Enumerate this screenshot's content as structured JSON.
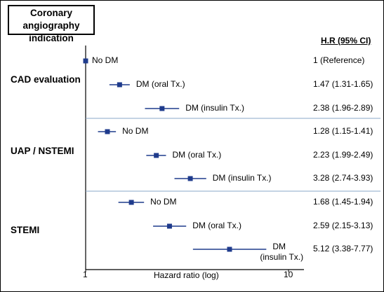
{
  "chart_title": "Coronary angiography indication",
  "ci_header": "H.R (95% CI)",
  "chart_data": {
    "type": "forest",
    "xlabel": "Hazard ratio (log)",
    "xscale": "log",
    "xlim": [
      1,
      10
    ],
    "x_ticks": [
      "1",
      "10"
    ],
    "marker_color": "#1f3b8c",
    "separator_color": "#8aa7c8",
    "groups": [
      {
        "name": "CAD evaluation",
        "rows": [
          {
            "label": "No DM",
            "hr": 1.0,
            "lo": null,
            "hi": null,
            "ci_text": "1      (Reference)"
          },
          {
            "label": "DM (oral Tx.)",
            "hr": 1.47,
            "lo": 1.31,
            "hi": 1.65,
            "ci_text": "1.47 (1.31-1.65)"
          },
          {
            "label": "DM (insulin Tx.)",
            "hr": 2.38,
            "lo": 1.96,
            "hi": 2.89,
            "ci_text": "2.38 (1.96-2.89)"
          }
        ]
      },
      {
        "name": "UAP / NSTEMI",
        "rows": [
          {
            "label": "No DM",
            "hr": 1.28,
            "lo": 1.15,
            "hi": 1.41,
            "ci_text": "1.28 (1.15-1.41)"
          },
          {
            "label": "DM (oral Tx.)",
            "hr": 2.23,
            "lo": 1.99,
            "hi": 2.49,
            "ci_text": "2.23 (1.99-2.49)"
          },
          {
            "label": "DM (insulin Tx.)",
            "hr": 3.28,
            "lo": 2.74,
            "hi": 3.93,
            "ci_text": "3.28 (2.74-3.93)"
          }
        ]
      },
      {
        "name": "STEMI",
        "rows": [
          {
            "label": "No DM",
            "hr": 1.68,
            "lo": 1.45,
            "hi": 1.94,
            "ci_text": "1.68 (1.45-1.94)"
          },
          {
            "label": "DM (oral Tx.)",
            "hr": 2.59,
            "lo": 2.15,
            "hi": 3.13,
            "ci_text": "2.59 (2.15-3.13)"
          },
          {
            "label": "DM (insulin Tx.)",
            "label_lines": [
              "DM",
              "(insulin Tx.)"
            ],
            "hr": 5.12,
            "lo": 3.38,
            "hi": 7.77,
            "ci_text": "5.12 (3.38-7.77)"
          }
        ]
      }
    ]
  }
}
